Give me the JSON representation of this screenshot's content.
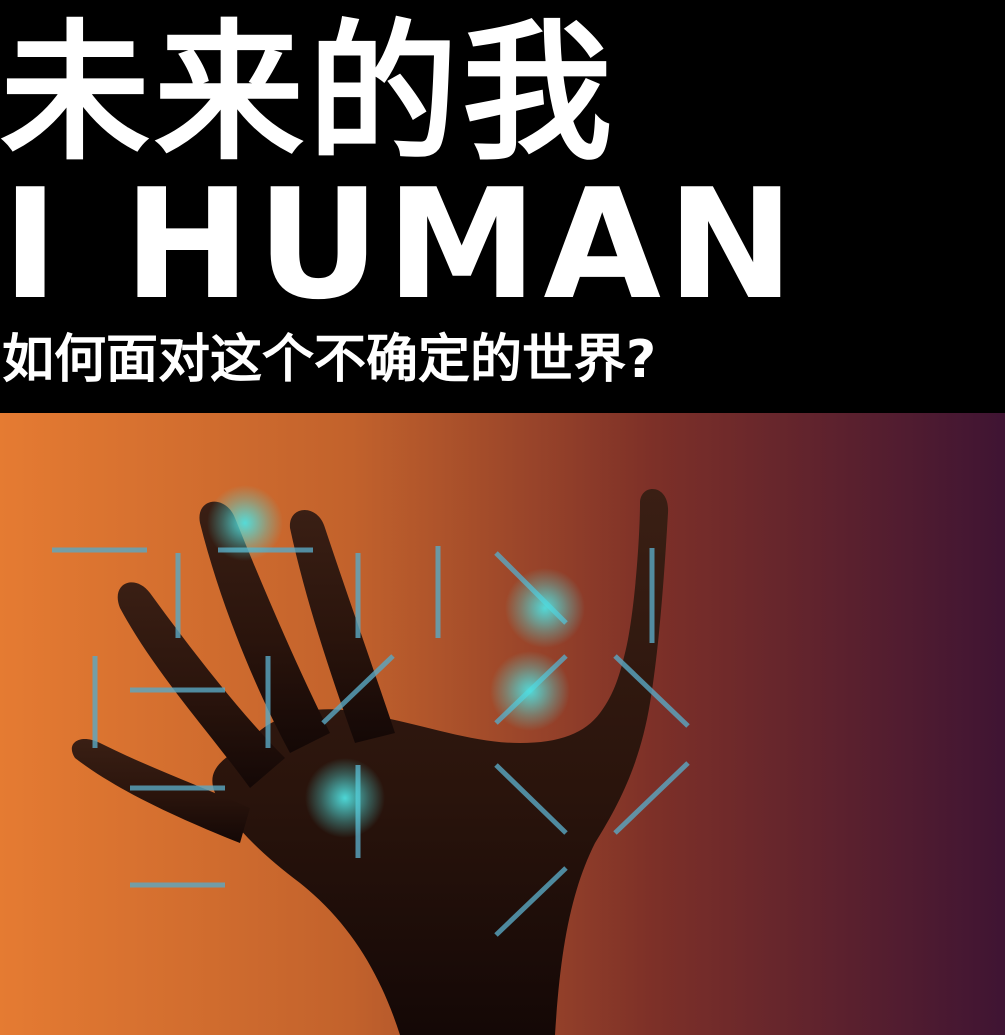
{
  "poster": {
    "title_cn": "未来的我",
    "title_en": "I HUMAN",
    "subtitle": "如何面对这个不确定的世界?"
  },
  "colors": {
    "background": "#000000",
    "text": "#ffffff",
    "gradient_left": "#e57b32",
    "gradient_mid": "#a04a28",
    "gradient_right": "#3f1433",
    "grid_lines": "#5aa9c4",
    "glow": "#4fe0e0",
    "hand": "#1a0d08"
  },
  "icons": {
    "hand": "hand-icon",
    "grid": "digital-grid-icon"
  }
}
